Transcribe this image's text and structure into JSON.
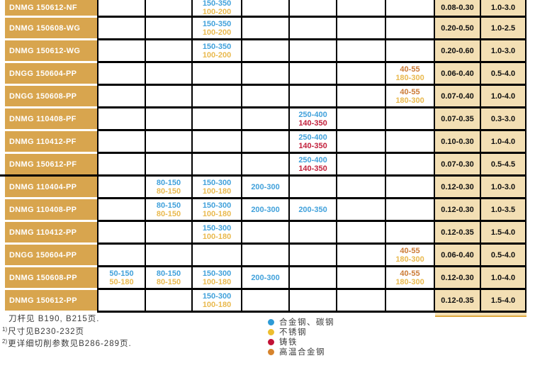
{
  "colors": {
    "name_bg": "#D8A54E",
    "highlight_bg": "#F3DFB4",
    "steel": "#41A1DB",
    "stainless": "#E9B94E",
    "cast_iron": "#C2203C",
    "superalloy": "#CB7A36",
    "legend_steel": "#2E9BD6",
    "legend_stainless": "#EDBE2F",
    "legend_cast_iron": "#C21236",
    "legend_superalloy": "#D6842D"
  },
  "table": {
    "rows": [
      {
        "name": "DNMG 150612-NF",
        "cells": [
          null,
          null,
          [
            [
              "150-350",
              "steel"
            ],
            [
              "100-200",
              "stainless"
            ]
          ],
          null,
          null,
          null,
          null
        ],
        "feed": "0.08-0.30",
        "depth": "1.0-3.0",
        "group_end": false
      },
      {
        "name": "DNMG 150608-WG",
        "cells": [
          null,
          null,
          [
            [
              "150-350",
              "steel"
            ],
            [
              "100-200",
              "stainless"
            ]
          ],
          null,
          null,
          null,
          null
        ],
        "feed": "0.20-0.50",
        "depth": "1.0-2.5",
        "group_end": false
      },
      {
        "name": "DNMG 150612-WG",
        "cells": [
          null,
          null,
          [
            [
              "150-350",
              "steel"
            ],
            [
              "100-200",
              "stainless"
            ]
          ],
          null,
          null,
          null,
          null
        ],
        "feed": "0.20-0.60",
        "depth": "1.0-3.0",
        "group_end": false
      },
      {
        "name": "DNGG 150604-PP",
        "cells": [
          null,
          null,
          null,
          null,
          null,
          null,
          [
            [
              "40-55",
              "superalloy"
            ],
            [
              "180-300",
              "stainless"
            ]
          ]
        ],
        "feed": "0.06-0.40",
        "depth": "0.5-4.0",
        "group_end": false
      },
      {
        "name": "DNGG 150608-PP",
        "cells": [
          null,
          null,
          null,
          null,
          null,
          null,
          [
            [
              "40-55",
              "superalloy"
            ],
            [
              "180-300",
              "stainless"
            ]
          ]
        ],
        "feed": "0.07-0.40",
        "depth": "1.0-4.0",
        "group_end": false
      },
      {
        "name": "DNMG 110408-PF",
        "cells": [
          null,
          null,
          null,
          null,
          [
            [
              "250-400",
              "steel"
            ],
            [
              "140-350",
              "cast_iron"
            ]
          ],
          null,
          null
        ],
        "feed": "0.07-0.35",
        "depth": "0.3-3.0",
        "group_end": false
      },
      {
        "name": "DNMG 110412-PF",
        "cells": [
          null,
          null,
          null,
          null,
          [
            [
              "250-400",
              "steel"
            ],
            [
              "140-350",
              "cast_iron"
            ]
          ],
          null,
          null
        ],
        "feed": "0.10-0.30",
        "depth": "1.0-4.0",
        "group_end": false
      },
      {
        "name": "DNMG 150612-PF",
        "cells": [
          null,
          null,
          null,
          null,
          [
            [
              "250-400",
              "steel"
            ],
            [
              "140-350",
              "cast_iron"
            ]
          ],
          null,
          null
        ],
        "feed": "0.07-0.30",
        "depth": "0.5-4.5",
        "group_end": true
      },
      {
        "name": "DNMG 110404-PP",
        "cells": [
          null,
          [
            [
              "80-150",
              "steel"
            ],
            [
              "80-150",
              "stainless"
            ]
          ],
          [
            [
              "150-300",
              "steel"
            ],
            [
              "100-180",
              "stainless"
            ]
          ],
          [
            [
              "200-300",
              "steel"
            ]
          ],
          null,
          null,
          null
        ],
        "feed": "0.12-0.30",
        "depth": "1.0-3.0",
        "group_end": false
      },
      {
        "name": "DNMG 110408-PP",
        "cells": [
          null,
          [
            [
              "80-150",
              "steel"
            ],
            [
              "80-150",
              "stainless"
            ]
          ],
          [
            [
              "150-300",
              "steel"
            ],
            [
              "100-180",
              "stainless"
            ]
          ],
          [
            [
              "200-300",
              "steel"
            ]
          ],
          [
            [
              "200-350",
              "steel"
            ]
          ],
          null,
          null
        ],
        "feed": "0.12-0.30",
        "depth": "1.0-3.5",
        "group_end": false
      },
      {
        "name": "DNMG 110412-PP",
        "cells": [
          null,
          null,
          [
            [
              "150-300",
              "steel"
            ],
            [
              "100-180",
              "stainless"
            ]
          ],
          null,
          null,
          null,
          null
        ],
        "feed": "0.12-0.35",
        "depth": "1.5-4.0",
        "group_end": false
      },
      {
        "name": "DNGG 150604-PP",
        "cells": [
          null,
          null,
          null,
          null,
          null,
          null,
          [
            [
              "40-55",
              "superalloy"
            ],
            [
              "180-300",
              "stainless"
            ]
          ]
        ],
        "feed": "0.06-0.40",
        "depth": "0.5-4.0",
        "group_end": false
      },
      {
        "name": "DNMG 150608-PP",
        "cells": [
          [
            [
              "50-150",
              "steel"
            ],
            [
              "50-180",
              "stainless"
            ]
          ],
          [
            [
              "80-150",
              "steel"
            ],
            [
              "80-150",
              "stainless"
            ]
          ],
          [
            [
              "150-300",
              "steel"
            ],
            [
              "100-180",
              "stainless"
            ]
          ],
          [
            [
              "200-300",
              "steel"
            ]
          ],
          null,
          null,
          [
            [
              "40-55",
              "superalloy"
            ],
            [
              "180-300",
              "stainless"
            ]
          ]
        ],
        "feed": "0.12-0.30",
        "depth": "1.0-4.0",
        "group_end": false
      },
      {
        "name": "DNMG 150612-PP",
        "cells": [
          null,
          null,
          [
            [
              "150-300",
              "steel"
            ],
            [
              "100-180",
              "stainless"
            ]
          ],
          null,
          null,
          null,
          null
        ],
        "feed": "0.12-0.35",
        "depth": "1.5-4.0",
        "group_end": false
      }
    ]
  },
  "footnotes": [
    {
      "sup": "",
      "text": "刀杆见 B190, B215页."
    },
    {
      "sup": "1)",
      "text": "尺寸见B230-232页"
    },
    {
      "sup": "2)",
      "text": "更详细切削参数见B286-289页."
    }
  ],
  "legend": [
    {
      "color_key": "legend_steel",
      "icon": "steel-dot-icon",
      "label": "合金钢、碳钢"
    },
    {
      "color_key": "legend_stainless",
      "icon": "stainless-dot-icon",
      "label": "不锈钢"
    },
    {
      "color_key": "legend_cast_iron",
      "icon": "cast-iron-dot-icon",
      "label": "铸铁"
    },
    {
      "color_key": "legend_superalloy",
      "icon": "superalloy-dot-icon",
      "label": "高温合金钢"
    }
  ]
}
